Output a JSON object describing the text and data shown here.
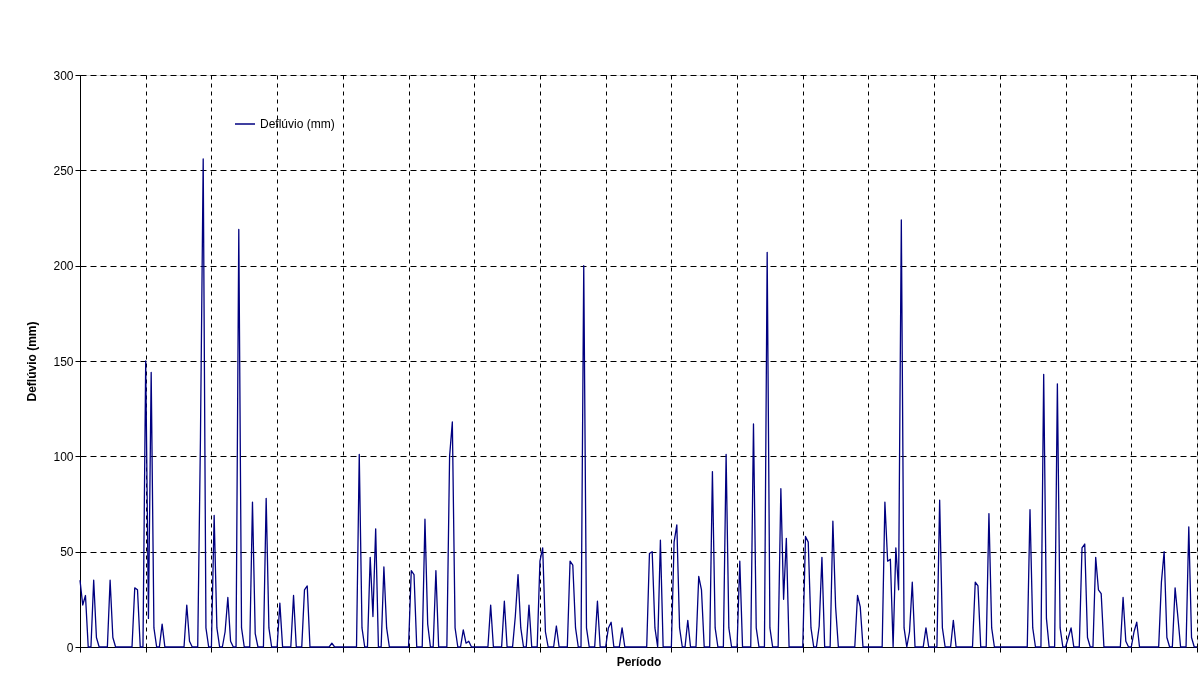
{
  "chart_data": {
    "type": "line",
    "xlabel": "Período",
    "ylabel": "Deflúvio (mm)",
    "categories": [
      null,
      null,
      null,
      null,
      null,
      null,
      null,
      null,
      null,
      null,
      null,
      null,
      null,
      null,
      null,
      null,
      null,
      null,
      null,
      null,
      null,
      null,
      null,
      null,
      null,
      null,
      null,
      null,
      null,
      null,
      null,
      null,
      null,
      null,
      null,
      null,
      null,
      null,
      null,
      null,
      null,
      null,
      null,
      null,
      null,
      null,
      null,
      null,
      null,
      null,
      null,
      null,
      null,
      null,
      null,
      null,
      null,
      null,
      null,
      null,
      null,
      null,
      null,
      null,
      null,
      null,
      null,
      null,
      null,
      null,
      null,
      null,
      null,
      null,
      null,
      null,
      null,
      null,
      null,
      null,
      null,
      null,
      null,
      null,
      null,
      null,
      null,
      null,
      null,
      null,
      null,
      null,
      null,
      null,
      null,
      null,
      null,
      null,
      null,
      null,
      null,
      null,
      null,
      null,
      null,
      null,
      null,
      null,
      null,
      null,
      null,
      null,
      null,
      null,
      null,
      null,
      null,
      null,
      null,
      null,
      null,
      null,
      null,
      null,
      null,
      null,
      null,
      null,
      null,
      null,
      null,
      null,
      null,
      null,
      null,
      null,
      null,
      null,
      null,
      null,
      null,
      null,
      null,
      null,
      null,
      null,
      null,
      null,
      null,
      null,
      null,
      null,
      null,
      null,
      null,
      null,
      null,
      null,
      null,
      null,
      null,
      null,
      null,
      null,
      null,
      null,
      null,
      null,
      null,
      null,
      null,
      null,
      null,
      null,
      null,
      null,
      null,
      null,
      null,
      null,
      null,
      null,
      null,
      null,
      null,
      null,
      null,
      null,
      null,
      null,
      null,
      null,
      null,
      null,
      null,
      null,
      null,
      null,
      null,
      null,
      null,
      null,
      null,
      null,
      null,
      null,
      null,
      null,
      null,
      null,
      null,
      null,
      null,
      null,
      null,
      null,
      null,
      null,
      null,
      null,
      null,
      null,
      null,
      null,
      null,
      null,
      null,
      null,
      null,
      null,
      null,
      null,
      null,
      null,
      null,
      null,
      null,
      null,
      null,
      null,
      null,
      null,
      null,
      null,
      null,
      null,
      null,
      null,
      null,
      null,
      null,
      null,
      null,
      null,
      null,
      null,
      null,
      null,
      null,
      null,
      null,
      null,
      null,
      null,
      null,
      null,
      null,
      null,
      null,
      null,
      null,
      null,
      null,
      null,
      null,
      null,
      null,
      null,
      null,
      null,
      null,
      null,
      null,
      null,
      null,
      null,
      null,
      null,
      null,
      null,
      null,
      null,
      null,
      null,
      null,
      null,
      null,
      null,
      null,
      null,
      null,
      null,
      null,
      null,
      null,
      null,
      null,
      null,
      null,
      null,
      null,
      null,
      null,
      null,
      null,
      null,
      null,
      null,
      null,
      null,
      null,
      null,
      null,
      null,
      null,
      null,
      null,
      null,
      null,
      null,
      null,
      null,
      null,
      null,
      null,
      null,
      null,
      null,
      null,
      null,
      null,
      null,
      null,
      null,
      null,
      null,
      null,
      null,
      null,
      null,
      null,
      null,
      null,
      null,
      null,
      null,
      null,
      null,
      null,
      null,
      null,
      null,
      null,
      null,
      null,
      null,
      null,
      null,
      null,
      null,
      null,
      null,
      null,
      null,
      null,
      null,
      null,
      null,
      null,
      null,
      null,
      null,
      null,
      null,
      null,
      null,
      null,
      null,
      null,
      null,
      null,
      null,
      null,
      null,
      null,
      null,
      null,
      null,
      null,
      null,
      null,
      null,
      null,
      null,
      null,
      null,
      null,
      null,
      null
    ],
    "ylim": [
      0,
      300
    ],
    "yticks": [
      0,
      50,
      100,
      150,
      200,
      250,
      300
    ],
    "grid": true,
    "legend": "top left",
    "marker": "none",
    "line_style": "solid",
    "series": [
      {
        "name": "Deflúvio (mm)",
        "color": "#000080",
        "values": [
          35,
          22,
          27,
          0,
          0,
          35,
          5,
          0,
          0,
          0,
          0,
          35,
          5,
          0,
          0,
          0,
          0,
          0,
          0,
          0,
          31,
          30,
          0,
          0,
          150,
          15,
          144,
          10,
          0,
          0,
          12,
          0,
          0,
          0,
          0,
          0,
          0,
          0,
          0,
          22,
          3,
          0,
          0,
          0,
          110,
          256,
          10,
          0,
          0,
          69,
          10,
          0,
          0,
          8,
          26,
          3,
          0,
          0,
          219,
          10,
          0,
          0,
          0,
          76,
          7,
          0,
          0,
          0,
          78,
          10,
          0,
          0,
          0,
          23,
          0,
          0,
          0,
          0,
          27,
          0,
          0,
          0,
          30,
          32,
          0,
          0,
          0,
          0,
          0,
          0,
          0,
          0,
          2,
          0,
          0,
          0,
          0,
          0,
          0,
          0,
          0,
          0,
          101,
          10,
          0,
          0,
          47,
          16,
          62,
          0,
          0,
          42,
          10,
          0,
          0,
          0,
          0,
          0,
          0,
          0,
          0,
          40,
          38,
          0,
          0,
          0,
          67,
          12,
          0,
          0,
          40,
          0,
          0,
          0,
          0,
          100,
          118,
          10,
          0,
          0,
          9,
          2,
          3,
          0,
          0,
          0,
          0,
          0,
          0,
          0,
          22,
          0,
          0,
          0,
          0,
          24,
          0,
          0,
          0,
          16,
          38,
          10,
          0,
          0,
          22,
          0,
          0,
          0,
          45,
          52,
          8,
          0,
          0,
          0,
          11,
          0,
          0,
          0,
          0,
          45,
          43,
          10,
          0,
          0,
          200,
          10,
          0,
          0,
          0,
          24,
          0,
          0,
          0,
          10,
          13,
          0,
          0,
          0,
          10,
          0,
          0,
          0,
          0,
          0,
          0,
          0,
          0,
          0,
          49,
          50,
          10,
          0,
          56,
          0,
          0,
          0,
          0,
          55,
          64,
          10,
          0,
          0,
          14,
          0,
          0,
          0,
          37,
          30,
          0,
          0,
          0,
          92,
          10,
          0,
          0,
          0,
          101,
          10,
          0,
          0,
          0,
          45,
          0,
          0,
          0,
          0,
          117,
          10,
          0,
          0,
          0,
          207,
          10,
          0,
          0,
          0,
          83,
          25,
          57,
          0,
          0,
          0,
          0,
          0,
          0,
          58,
          55,
          10,
          0,
          0,
          11,
          47,
          0,
          0,
          0,
          66,
          21,
          0,
          0,
          0,
          0,
          0,
          0,
          0,
          27,
          21,
          0,
          0,
          0,
          0,
          0,
          0,
          0,
          0,
          76,
          45,
          46,
          0,
          52,
          30,
          224,
          10,
          0,
          8,
          34,
          0,
          0,
          0,
          0,
          10,
          0,
          0,
          0,
          0,
          77,
          10,
          0,
          0,
          0,
          14,
          0,
          0,
          0,
          0,
          0,
          0,
          0,
          34,
          32,
          0,
          0,
          0,
          70,
          10,
          0,
          0,
          0,
          0,
          0,
          0,
          0,
          0,
          0,
          0,
          0,
          0,
          0,
          72,
          10,
          0,
          0,
          0,
          143,
          15,
          0,
          0,
          0,
          138,
          10,
          0,
          0,
          5,
          10,
          0,
          0,
          0,
          52,
          54,
          5,
          0,
          0,
          47,
          30,
          28,
          0,
          0,
          0,
          0,
          0,
          0,
          0,
          26,
          3,
          0,
          0,
          8,
          13,
          0,
          0,
          0,
          0,
          0,
          0,
          0,
          0,
          34,
          50,
          5,
          0,
          0,
          31,
          16,
          0,
          0,
          0,
          63,
          5,
          0,
          0
        ]
      }
    ]
  }
}
